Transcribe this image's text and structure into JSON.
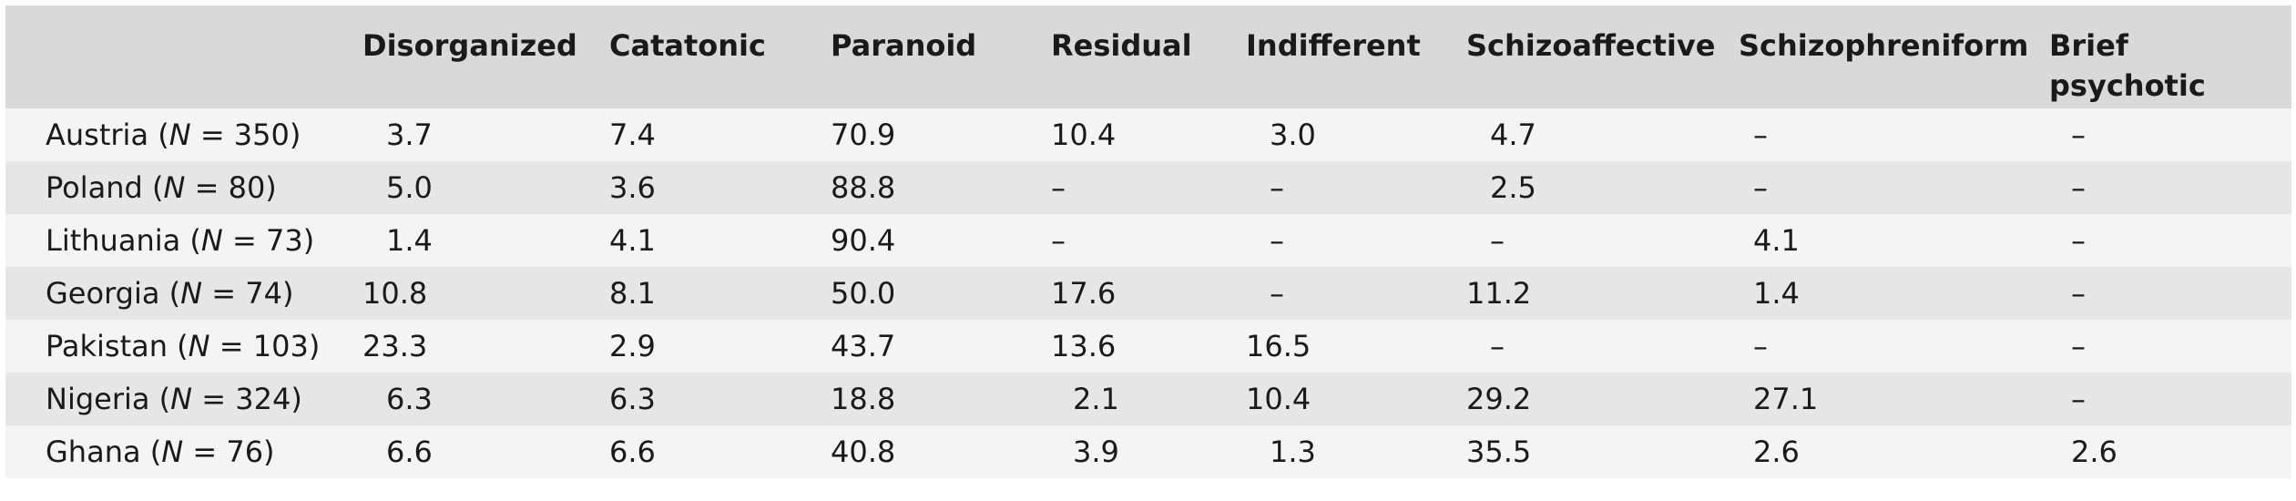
{
  "table": {
    "headers": [
      "",
      "Disorganized",
      "Catatonic",
      "Paranoid",
      "Residual",
      "Indifferent",
      "Schizoaffective",
      "Schizophreniform",
      "Brief psychotic"
    ],
    "header_line2": [
      "",
      "",
      "",
      "",
      "",
      "",
      "",
      "",
      ""
    ],
    "rows": [
      {
        "country": "Austria",
        "n": "350",
        "cells": [
          "3.7",
          "7.4",
          "70.9",
          "10.4",
          "3.0",
          "4.7",
          "–",
          "–"
        ]
      },
      {
        "country": "Poland",
        "n": "80",
        "cells": [
          "5.0",
          "3.6",
          "88.8",
          "–",
          "–",
          "2.5",
          "–",
          "–"
        ]
      },
      {
        "country": "Lithuania",
        "n": "73",
        "cells": [
          "1.4",
          "4.1",
          "90.4",
          "–",
          "–",
          "–",
          "4.1",
          "–"
        ]
      },
      {
        "country": "Georgia",
        "n": "74",
        "cells": [
          "10.8",
          "8.1",
          "50.0",
          "17.6",
          "–",
          "11.2",
          "1.4",
          "–"
        ]
      },
      {
        "country": "Pakistan",
        "n": "103",
        "cells": [
          "23.3",
          "2.9",
          "43.7",
          "13.6",
          "16.5",
          "–",
          "–",
          "–"
        ]
      },
      {
        "country": "Nigeria",
        "n": "324",
        "cells": [
          "6.3",
          "6.3",
          "18.8",
          "2.1",
          "10.4",
          "29.2",
          "27.1",
          "–"
        ]
      },
      {
        "country": "Ghana",
        "n": "76",
        "cells": [
          "6.6",
          "6.6",
          "40.8",
          "3.9",
          "1.3",
          "35.5",
          "2.6",
          "2.6"
        ]
      }
    ]
  },
  "labels": {
    "n_symbol": "N",
    "open": " (",
    "eq": " = ",
    "close": ")"
  }
}
